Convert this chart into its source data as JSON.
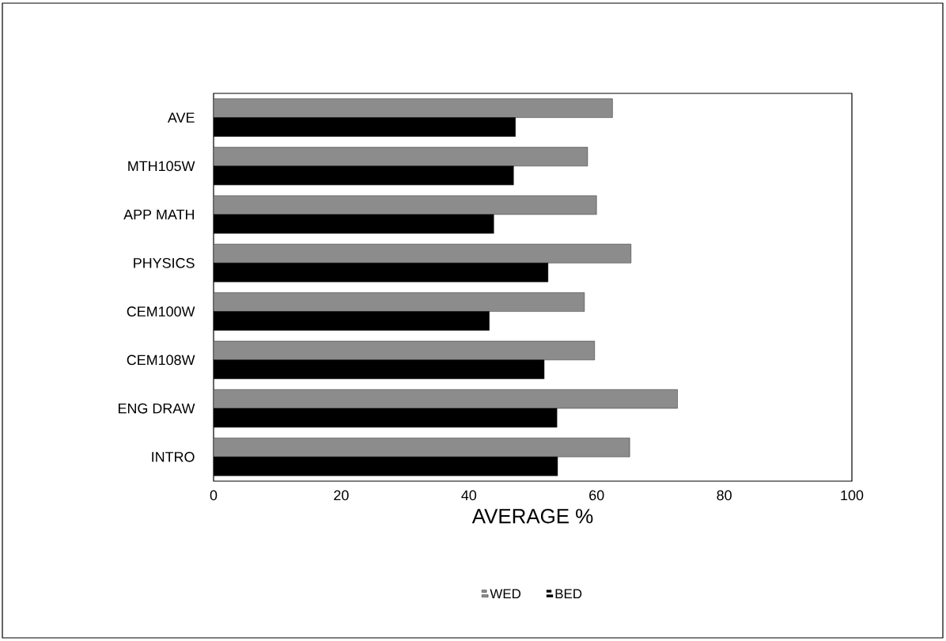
{
  "chart_data": {
    "type": "bar",
    "orientation": "horizontal",
    "categories": [
      "AVE",
      "MTH105W",
      "APP MATH",
      "PHYSICS",
      "CEM100W",
      "CEM108W",
      "ENG DRAW",
      "INTRO"
    ],
    "series": [
      {
        "name": "WED",
        "color": "#8c8c8c",
        "values": [
          62.5,
          58.6,
          60.0,
          65.4,
          58.1,
          59.7,
          72.7,
          65.2
        ]
      },
      {
        "name": "BED",
        "color": "#000000",
        "values": [
          47.3,
          47.0,
          43.9,
          52.4,
          43.2,
          51.8,
          53.8,
          53.9
        ]
      }
    ],
    "xlabel": "AVERAGE %",
    "xlim": [
      0,
      100
    ],
    "xticks": [
      0,
      20,
      40,
      60,
      80,
      100
    ],
    "grid": false,
    "legend": "bottom"
  }
}
